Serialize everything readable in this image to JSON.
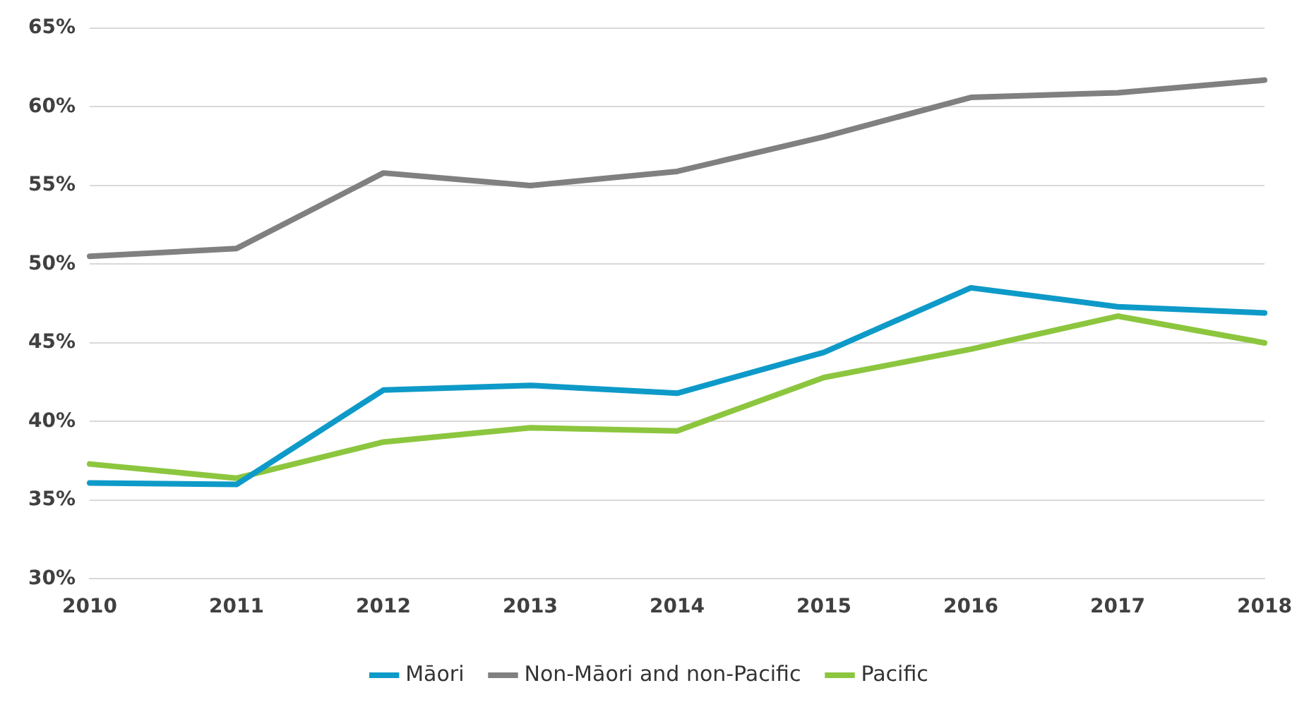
{
  "chart_data": {
    "type": "line",
    "categories": [
      "2010",
      "2011",
      "2012",
      "2013",
      "2014",
      "2015",
      "2016",
      "2017",
      "2018"
    ],
    "series": [
      {
        "name": "Māori",
        "color": "#0e9ac8",
        "values": [
          36.1,
          36.0,
          42.0,
          42.3,
          41.8,
          44.4,
          48.5,
          47.3,
          46.9
        ]
      },
      {
        "name": "Non-Māori and non-Pacific",
        "color": "#808080",
        "values": [
          50.5,
          51.0,
          55.8,
          55.0,
          55.9,
          58.1,
          60.6,
          60.9,
          61.7
        ]
      },
      {
        "name": "Pacific",
        "color": "#8cc63e",
        "values": [
          37.3,
          36.4,
          38.7,
          39.6,
          39.4,
          42.8,
          44.6,
          46.7,
          45.0
        ]
      }
    ],
    "ylim": [
      30,
      65
    ],
    "yticks": [
      {
        "value": 30,
        "label": "30%"
      },
      {
        "value": 35,
        "label": "35%"
      },
      {
        "value": 40,
        "label": "40%"
      },
      {
        "value": 45,
        "label": "45%"
      },
      {
        "value": 50,
        "label": "50%"
      },
      {
        "value": 55,
        "label": "55%"
      },
      {
        "value": 60,
        "label": "60%"
      },
      {
        "value": 65,
        "label": "65%"
      }
    ],
    "grid": "y",
    "legend": "bottom",
    "marker": "none",
    "line_style": "solid"
  }
}
